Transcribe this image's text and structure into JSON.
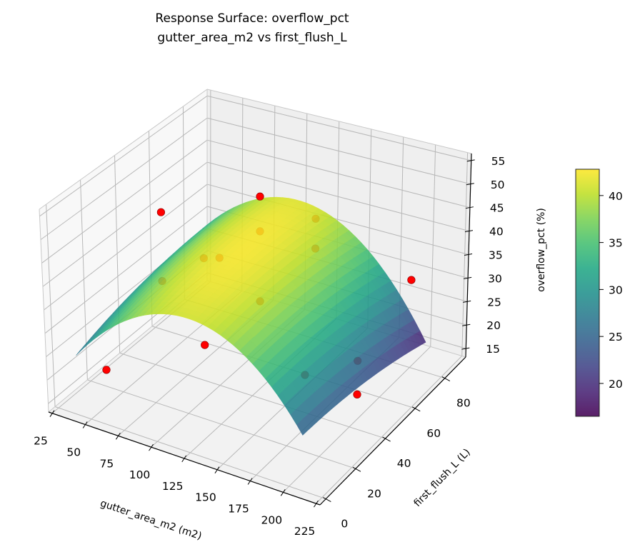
{
  "chart_data": {
    "type": "surface3d",
    "title": "Response Surface: overflow_pct",
    "subtitle": "gutter_area_m2 vs first_flush_L",
    "xlabel": "gutter_area_m2 (m2)",
    "ylabel": "first_flush_L (L)",
    "zlabel": "overflow_pct (%)",
    "xticks": [
      25,
      50,
      75,
      100,
      125,
      150,
      175,
      200,
      225
    ],
    "yticks": [
      0,
      20,
      40,
      60,
      80
    ],
    "zticks": [
      15,
      20,
      25,
      30,
      35,
      40,
      45,
      50,
      55
    ],
    "xlim": [
      22.3,
      228
    ],
    "ylim": [
      -4,
      94
    ],
    "zlim": [
      13.2,
      56.5
    ],
    "grid": true,
    "view": {
      "elevation": 30,
      "azimuth": -60
    },
    "surface": {
      "model": "quadratic",
      "x_range": [
        40,
        210
      ],
      "y_range": [
        0,
        82
      ],
      "intercept": 42.5,
      "center": [
        115,
        45
      ],
      "coef_xx": -0.0022,
      "coef_yy": -0.0008,
      "coef_xy": -0.0008,
      "colormap": "viridis",
      "alpha": 0.88
    },
    "points": [
      {
        "x": 50,
        "y": 10,
        "z": 20.8
      },
      {
        "x": 50,
        "y": 45,
        "z": 44.9
      },
      {
        "x": 50,
        "y": 45,
        "z": 29.9
      },
      {
        "x": 50,
        "y": 80,
        "z": 24.8
      },
      {
        "x": 125,
        "y": 10,
        "z": 50.8
      },
      {
        "x": 125,
        "y": 10,
        "z": 32.7
      },
      {
        "x": 125,
        "y": 45,
        "z": 54.1
      },
      {
        "x": 125,
        "y": 45,
        "z": 46.7
      },
      {
        "x": 125,
        "y": 45,
        "z": 31.8
      },
      {
        "x": 125,
        "y": 80,
        "z": 39.3
      },
      {
        "x": 125,
        "y": 80,
        "z": 32.8
      },
      {
        "x": 200,
        "y": 10,
        "z": 32.9
      },
      {
        "x": 200,
        "y": 45,
        "z": 25.4
      },
      {
        "x": 200,
        "y": 45,
        "z": 18.4
      },
      {
        "x": 200,
        "y": 80,
        "z": 31.8
      }
    ],
    "point_color": "#ff0000",
    "point_edge_color": "#8b0000",
    "colorbar": {
      "range": [
        16.5,
        42.8
      ],
      "ticks": [
        20,
        25,
        30,
        35,
        40
      ]
    }
  }
}
